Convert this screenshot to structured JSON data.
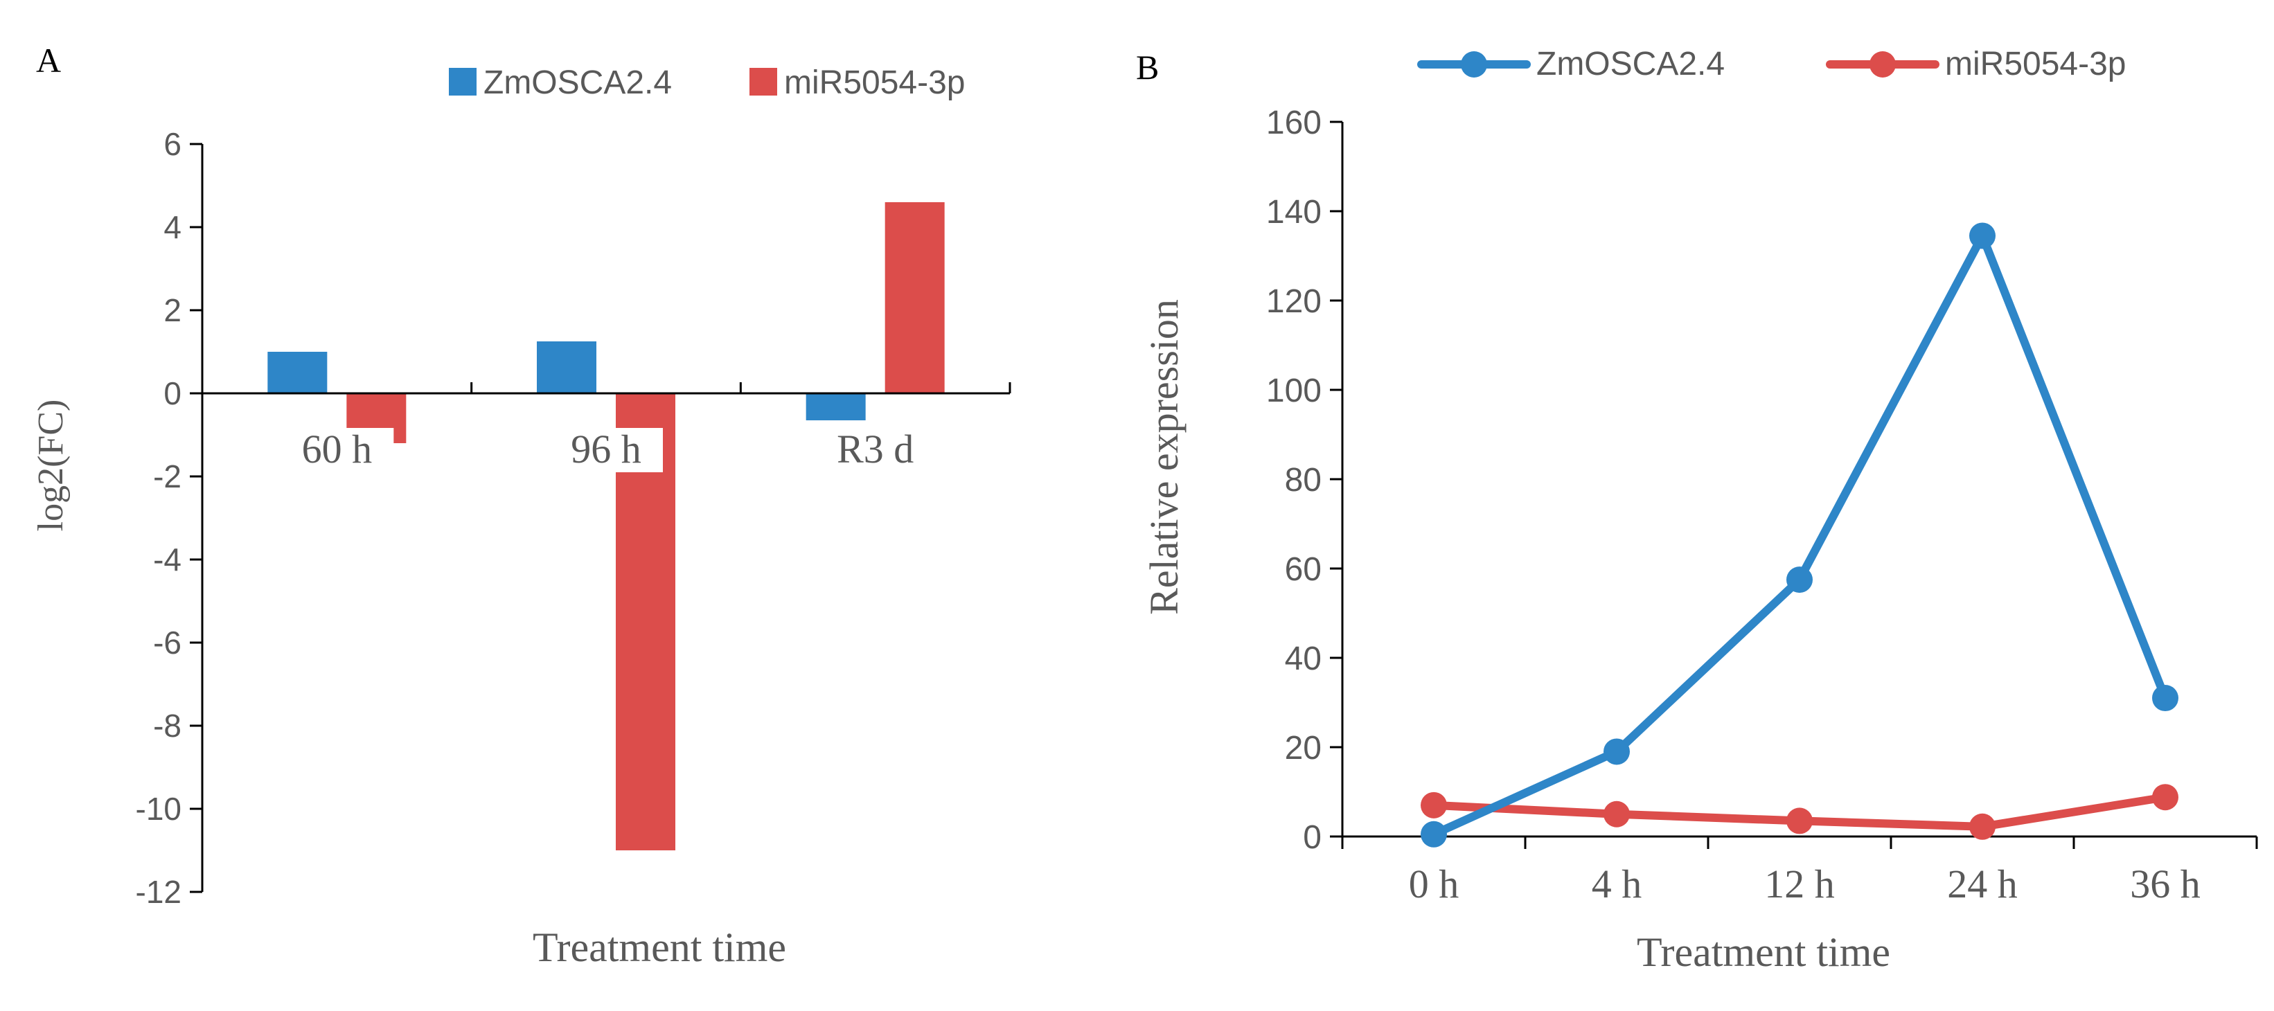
{
  "panels": {
    "a_label": "A",
    "b_label": "B"
  },
  "colors": {
    "blue": "#2e86c8",
    "red": "#dc4d4b",
    "axis": "#000000",
    "text": "#595959"
  },
  "chart_data": [
    {
      "type": "bar",
      "categories": [
        "60 h",
        "96 h",
        "R3 d"
      ],
      "series": [
        {
          "name": "ZmOSCA2.4",
          "values": [
            1.0,
            1.25,
            -0.65
          ]
        },
        {
          "name": "miR5054-3p",
          "values": [
            -1.2,
            -11.0,
            4.6
          ]
        }
      ],
      "title": "",
      "xlabel": "Treatment time",
      "ylabel": "log2(FC)",
      "ylim": [
        -12,
        6
      ],
      "yticks": [
        "6",
        "4",
        "2",
        "0",
        "-2",
        "-4",
        "-6",
        "-8",
        "-10",
        "-12"
      ],
      "legend": "top",
      "grid": false
    },
    {
      "type": "line",
      "categories": [
        "0 h",
        "4 h",
        "12 h",
        "24 h",
        "36 h"
      ],
      "series": [
        {
          "name": "ZmOSCA2.4",
          "values": [
            0.5,
            19,
            57.5,
            134.5,
            31
          ]
        },
        {
          "name": "miR5054-3p",
          "values": [
            7,
            5,
            3.5,
            2.2,
            8.8
          ]
        }
      ],
      "title": "",
      "xlabel": "Treatment time",
      "ylabel": "Relative expression",
      "ylim": [
        0,
        160
      ],
      "yticks": [
        "0",
        "20",
        "40",
        "60",
        "80",
        "100",
        "120",
        "140",
        "160"
      ],
      "legend": "top",
      "grid": false
    }
  ]
}
